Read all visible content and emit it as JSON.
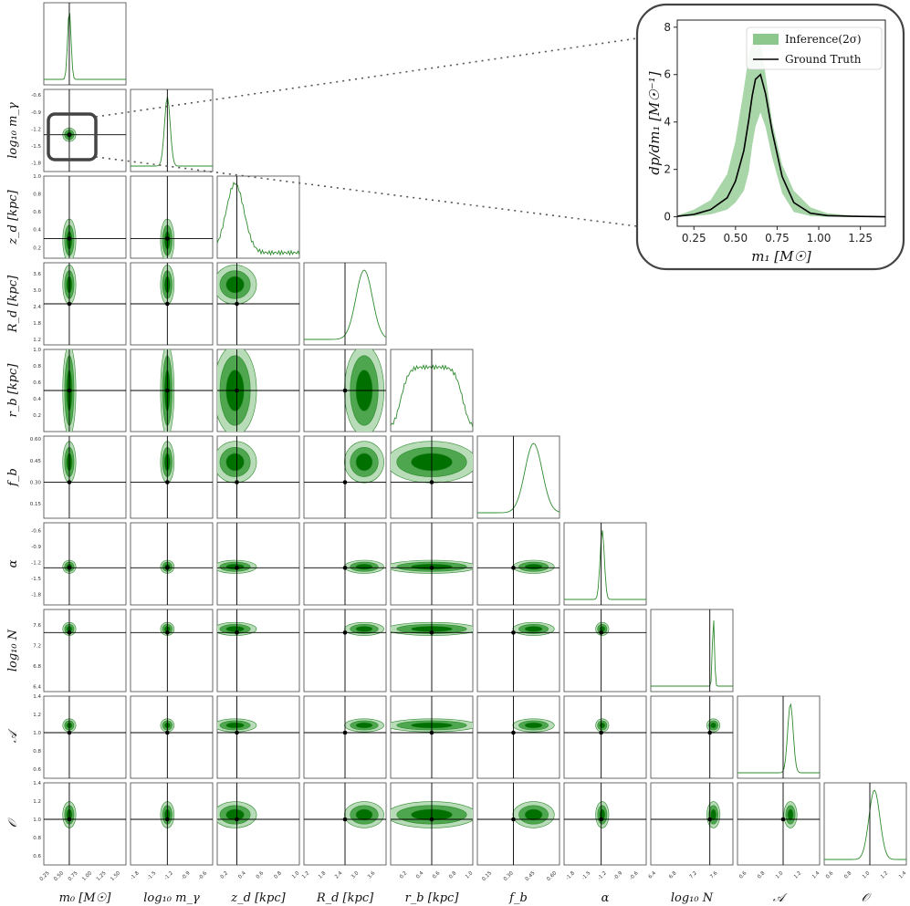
{
  "chart_data": [
    {
      "type": "corner",
      "parameters": [
        {
          "label": "m₀ [M☉]",
          "ticks": [
            "0.25",
            "0.50",
            "0.75",
            "1.00",
            "1.25",
            "1.50"
          ],
          "range": [
            0.15,
            1.6
          ],
          "truth": 0.6,
          "mean": 0.6,
          "sd": 0.03
        },
        {
          "label": "log₁₀ m_γ",
          "ticks": [
            "-1.8",
            "-1.5",
            "-1.2",
            "-0.9",
            "-0.6"
          ],
          "range": [
            -1.95,
            -0.5
          ],
          "truth": -1.3,
          "mean": -1.3,
          "sd": 0.05
        },
        {
          "label": "z_d [kpc]",
          "ticks": [
            "0.2",
            "0.4",
            "0.6",
            "0.8",
            "1.0"
          ],
          "range": [
            0.08,
            1.0
          ],
          "truth": 0.3,
          "mean": 0.28,
          "sd": 0.1
        },
        {
          "label": "R_d [kpc]",
          "ticks": [
            "1.2",
            "1.8",
            "2.4",
            "3.0",
            "3.6"
          ],
          "range": [
            1.0,
            4.0
          ],
          "truth": 2.5,
          "mean": 3.2,
          "sd": 0.3
        },
        {
          "label": "r_b [kpc]",
          "ticks": [
            "0.2",
            "0.4",
            "0.6",
            "0.8",
            "1.0"
          ],
          "range": [
            0.0,
            1.0
          ],
          "truth": 0.5,
          "mean": 0.5,
          "sd": 0.25
        },
        {
          "label": "f_b",
          "ticks": [
            "0.15",
            "0.30",
            "0.45",
            "0.60"
          ],
          "range": [
            0.05,
            0.62
          ],
          "truth": 0.3,
          "mean": 0.44,
          "sd": 0.06
        },
        {
          "label": "α",
          "ticks": [
            "-1.8",
            "-1.5",
            "-1.2",
            "-0.9",
            "-0.6"
          ],
          "range": [
            -2.0,
            -0.45
          ],
          "truth": -1.3,
          "mean": -1.28,
          "sd": 0.04
        },
        {
          "label": "log₁₀ N",
          "ticks": [
            "6.4",
            "6.8",
            "7.2",
            "7.6"
          ],
          "range": [
            6.3,
            7.9
          ],
          "truth": 7.45,
          "mean": 7.52,
          "sd": 0.02
        },
        {
          "label": "𝒜",
          "ticks": [
            "0.6",
            "0.8",
            "1.0",
            "1.2",
            "1.4"
          ],
          "range": [
            0.5,
            1.4
          ],
          "truth": 1.0,
          "mean": 1.08,
          "sd": 0.03
        },
        {
          "label": "𝒪",
          "ticks": [
            "0.6",
            "0.8",
            "1.0",
            "1.2",
            "1.4"
          ],
          "range": [
            0.5,
            1.4
          ],
          "truth": 1.0,
          "mean": 1.05,
          "sd": 0.06
        }
      ],
      "colors": {
        "fill_dark": "#007000",
        "fill_mid": "#4ea64e",
        "fill_light": "#b8dbb8",
        "line": "#2e8b2e",
        "truth": "#000000"
      }
    },
    {
      "type": "area",
      "xlabel": "m₁ [M☉]",
      "ylabel": "dp/dm₁ [M☉⁻¹]",
      "xlim": [
        0.15,
        1.4
      ],
      "ylim": [
        -0.4,
        8.3
      ],
      "xticks": [
        "0.25",
        "0.50",
        "0.75",
        "1.00",
        "1.25"
      ],
      "yticks": [
        "0",
        "2",
        "4",
        "6",
        "8"
      ],
      "legend": {
        "position": "top-right",
        "entries": [
          "Inference(2σ)",
          "Ground Truth"
        ]
      },
      "x": [
        0.15,
        0.25,
        0.35,
        0.45,
        0.5,
        0.55,
        0.58,
        0.6,
        0.62,
        0.65,
        0.68,
        0.72,
        0.78,
        0.85,
        0.95,
        1.05,
        1.2,
        1.4
      ],
      "truth": [
        0.02,
        0.1,
        0.3,
        0.8,
        1.5,
        2.8,
        4.1,
        5.1,
        5.8,
        6.0,
        5.2,
        3.6,
        1.7,
        0.6,
        0.15,
        0.05,
        0.02,
        0.0
      ],
      "upper": [
        0.05,
        0.3,
        0.7,
        1.8,
        3.2,
        5.4,
        6.8,
        7.4,
        7.8,
        7.5,
        6.0,
        4.0,
        2.2,
        1.1,
        0.4,
        0.15,
        0.05,
        0.02
      ],
      "lower": [
        0.0,
        0.03,
        0.1,
        0.3,
        0.6,
        1.1,
        1.9,
        3.0,
        3.8,
        4.4,
        3.8,
        2.5,
        1.0,
        0.2,
        0.03,
        0.0,
        0.0,
        0.0
      ],
      "colors": {
        "band": "#8cc88c",
        "line": "#000000"
      }
    }
  ]
}
